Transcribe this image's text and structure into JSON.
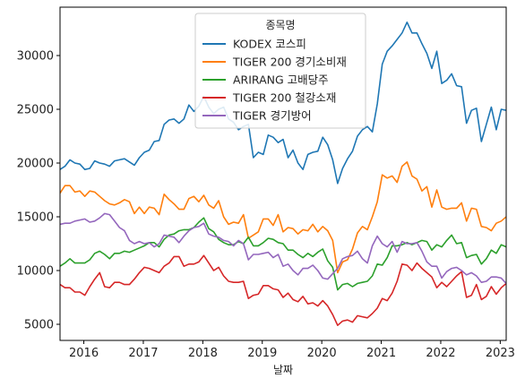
{
  "chart_data": {
    "type": "line",
    "xlabel": "날짜",
    "ylabel": "",
    "xlim": [
      2015.6,
      2023.1
    ],
    "ylim": [
      3500,
      34500
    ],
    "x_ticks": [
      2016,
      2017,
      2018,
      2019,
      2020,
      2021,
      2022,
      2023
    ],
    "x_tick_labels": [
      "2016",
      "2017",
      "2018",
      "2019",
      "2020",
      "2021",
      "2022",
      "2023"
    ],
    "y_ticks": [
      5000,
      10000,
      15000,
      20000,
      25000,
      30000
    ],
    "y_tick_labels": [
      "5000",
      "10000",
      "15000",
      "20000",
      "25000",
      "30000"
    ],
    "legend": {
      "title": "종목명",
      "placement": "upper center"
    },
    "grid": false,
    "x_start": 2015.6,
    "x_step": 0.0833333,
    "series": [
      {
        "name": "KODEX 코스피",
        "color": "#1f77b4",
        "values": [
          19400,
          19700,
          20300,
          20000,
          19900,
          19400,
          19500,
          20200,
          20000,
          19900,
          19700,
          20200,
          20300,
          20400,
          20100,
          19800,
          20500,
          21000,
          21200,
          22000,
          22100,
          23600,
          24000,
          24100,
          23700,
          24100,
          25400,
          24800,
          25300,
          26200,
          25200,
          24600,
          25000,
          25200,
          24100,
          23800,
          23100,
          23400,
          23600,
          20500,
          21000,
          20800,
          22600,
          22400,
          21900,
          22200,
          20500,
          21200,
          20000,
          19400,
          20800,
          21000,
          21100,
          22400,
          21700,
          20300,
          18100,
          19500,
          20400,
          21100,
          22500,
          23100,
          23400,
          22900,
          25500,
          29200,
          30400,
          30900,
          31500,
          32100,
          33100,
          32100,
          32100,
          31100,
          30200,
          28800,
          30400,
          27400,
          27700,
          28300,
          27200,
          27100,
          23700,
          24900,
          25100,
          22000,
          23600,
          25200,
          23100,
          25000,
          24900
        ]
      },
      {
        "name": "TIGER 200 경기소비재",
        "color": "#ff7f0e",
        "values": [
          17200,
          17900,
          17900,
          17300,
          17400,
          16900,
          17400,
          17300,
          16900,
          16500,
          16200,
          16100,
          16300,
          16600,
          16400,
          15300,
          15900,
          15300,
          15900,
          15800,
          15200,
          17100,
          16600,
          16200,
          15700,
          15700,
          16700,
          16900,
          16400,
          17000,
          16100,
          15800,
          16500,
          15000,
          14300,
          14500,
          14400,
          15200,
          13000,
          13300,
          13600,
          14800,
          14800,
          14200,
          15200,
          13600,
          14000,
          13900,
          13400,
          13800,
          13700,
          14300,
          13600,
          14100,
          13700,
          12800,
          9800,
          10800,
          11000,
          12000,
          13500,
          14100,
          13800,
          15000,
          16400,
          18900,
          18600,
          18800,
          18200,
          19700,
          20100,
          18800,
          18500,
          17400,
          17800,
          15900,
          17500,
          15900,
          15700,
          15800,
          15800,
          16300,
          14600,
          15800,
          15700,
          14100,
          14000,
          13700,
          14400,
          14600,
          15000
        ]
      },
      {
        "name": "ARIRANG 고배당주",
        "color": "#2ca02c",
        "values": [
          10400,
          10700,
          11100,
          10700,
          10700,
          10700,
          11000,
          11600,
          11800,
          11500,
          11100,
          11600,
          11600,
          11800,
          11700,
          11900,
          12100,
          12300,
          12600,
          12600,
          12200,
          12900,
          13300,
          13400,
          13700,
          13800,
          13800,
          14000,
          14500,
          14900,
          13900,
          13600,
          12900,
          12600,
          12400,
          12400,
          12700,
          12500,
          13100,
          12300,
          12300,
          12600,
          13000,
          12900,
          12600,
          12500,
          11900,
          11900,
          11500,
          11200,
          11600,
          11300,
          11700,
          12000,
          10900,
          10300,
          8200,
          8700,
          8800,
          8500,
          8800,
          8900,
          9000,
          9500,
          10600,
          10500,
          11200,
          12300,
          12300,
          12400,
          12600,
          12400,
          12600,
          12800,
          12700,
          11900,
          12400,
          12200,
          12800,
          13300,
          12500,
          12600,
          11200,
          11400,
          11500,
          10600,
          11100,
          11900,
          11600,
          12400,
          12200
        ]
      },
      {
        "name": "TIGER 200 철강소재",
        "color": "#d62728",
        "values": [
          8700,
          8400,
          8400,
          8000,
          8000,
          7700,
          8500,
          9200,
          9800,
          8500,
          8400,
          8900,
          8900,
          8700,
          8700,
          9200,
          9800,
          10300,
          10200,
          10000,
          9800,
          10400,
          10700,
          11300,
          11300,
          10400,
          10600,
          10600,
          10800,
          11400,
          10700,
          10000,
          10300,
          9500,
          9000,
          8900,
          8900,
          9000,
          7400,
          7700,
          7800,
          8600,
          8600,
          8300,
          8200,
          7500,
          7900,
          7300,
          7100,
          7600,
          6900,
          7000,
          6700,
          7200,
          6700,
          5900,
          4900,
          5300,
          5400,
          5200,
          5800,
          5700,
          5600,
          6000,
          6500,
          7400,
          7200,
          7900,
          9000,
          10600,
          10500,
          10000,
          10700,
          10200,
          9800,
          9400,
          8400,
          8900,
          8500,
          9000,
          9500,
          9900,
          7500,
          7700,
          8700,
          7300,
          7600,
          8500,
          7800,
          8400,
          8800
        ]
      },
      {
        "name": "TIGER 경기방어",
        "color": "#9467bd",
        "values": [
          14300,
          14400,
          14400,
          14600,
          14700,
          14800,
          14500,
          14600,
          14900,
          15300,
          15200,
          14600,
          14000,
          13700,
          12800,
          12500,
          12700,
          12500,
          12600,
          12200,
          12500,
          13300,
          13200,
          13100,
          12600,
          13200,
          13700,
          14000,
          14100,
          14400,
          13400,
          13200,
          13100,
          12800,
          12700,
          12300,
          12800,
          12500,
          11000,
          11500,
          11500,
          11600,
          11700,
          11200,
          11500,
          10400,
          10600,
          10000,
          9600,
          10200,
          10200,
          10500,
          10000,
          9300,
          9200,
          9700,
          10200,
          11100,
          11300,
          11400,
          11800,
          11100,
          10700,
          12300,
          13200,
          12500,
          12200,
          12700,
          11700,
          12700,
          12500,
          12500,
          12600,
          11800,
          10800,
          10400,
          10400,
          9300,
          9900,
          10200,
          10300,
          10000,
          9600,
          9800,
          9500,
          8900,
          9000,
          9400,
          9400,
          9300,
          8800
        ]
      }
    ]
  }
}
